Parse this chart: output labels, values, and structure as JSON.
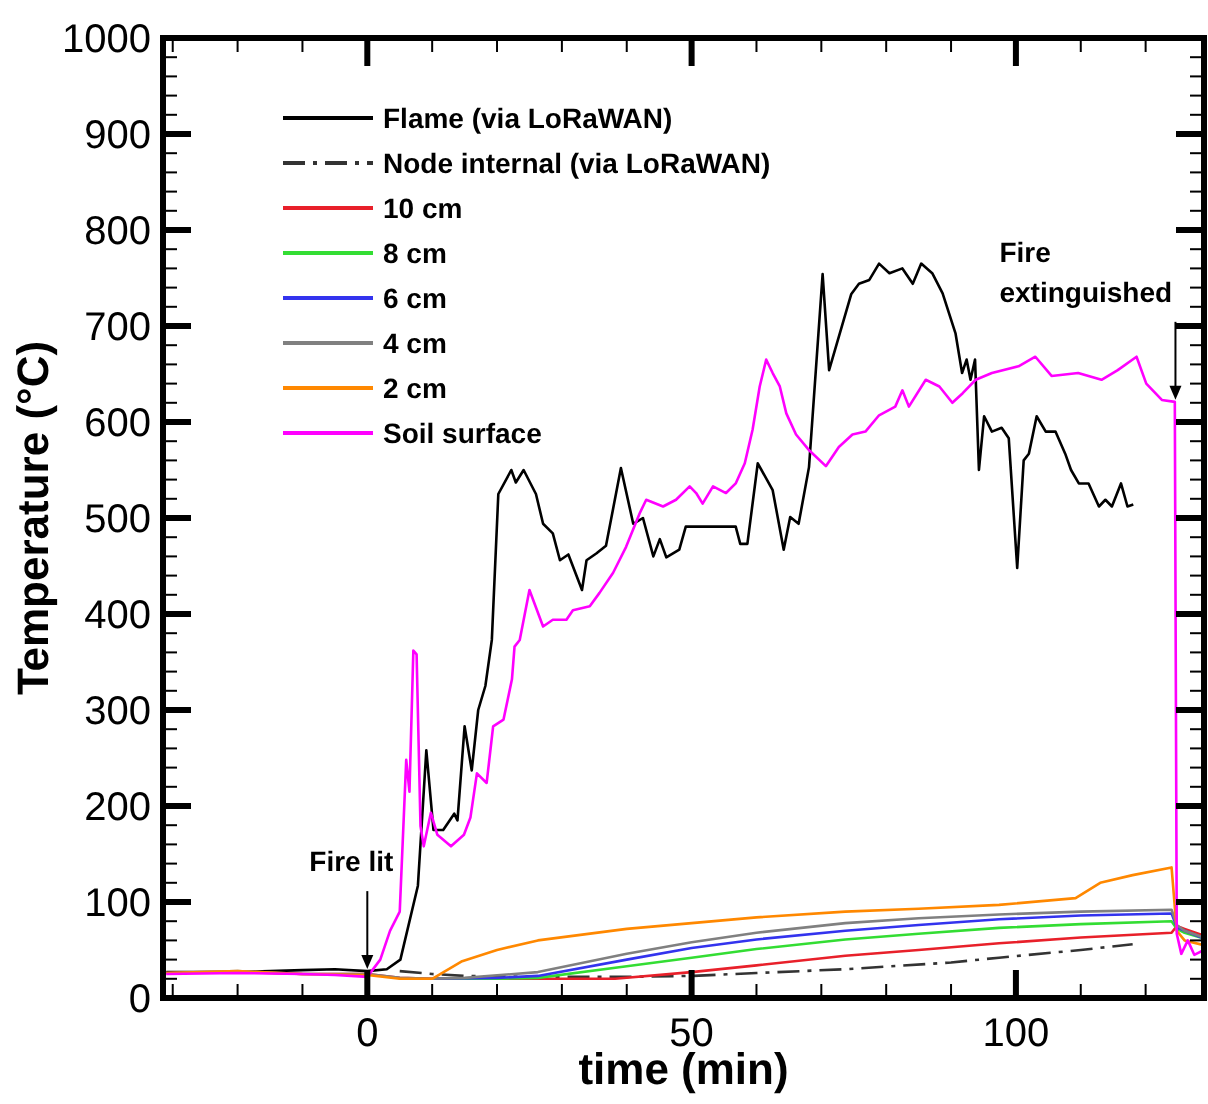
{
  "chart_data": {
    "type": "line",
    "xlabel": "time (min)",
    "ylabel": "Temperature (°C)",
    "xlim": [
      -31.5,
      129
    ],
    "ylim": [
      0,
      1000
    ],
    "xticks": [
      {
        "value": -30,
        "label": null
      },
      {
        "value": -20,
        "label": null
      },
      {
        "value": -10,
        "label": null
      },
      0,
      {
        "value": 10,
        "label": null
      },
      {
        "value": 20,
        "label": null
      },
      {
        "value": 30,
        "label": null
      },
      {
        "value": 40,
        "label": null
      },
      50,
      {
        "value": 60,
        "label": null
      },
      {
        "value": 70,
        "label": null
      },
      {
        "value": 80,
        "label": null
      },
      {
        "value": 90,
        "label": null
      },
      100,
      {
        "value": 110,
        "label": null
      },
      {
        "value": 120,
        "label": null
      }
    ],
    "yticks": [
      0,
      {
        "value": 20,
        "label": null
      },
      {
        "value": 40,
        "label": null
      },
      {
        "value": 60,
        "label": null
      },
      {
        "value": 80,
        "label": null
      },
      100,
      {
        "value": 120,
        "label": null
      },
      {
        "value": 140,
        "label": null
      },
      {
        "value": 160,
        "label": null
      },
      {
        "value": 180,
        "label": null
      },
      200,
      {
        "value": 220,
        "label": null
      },
      {
        "value": 240,
        "label": null
      },
      {
        "value": 260,
        "label": null
      },
      {
        "value": 280,
        "label": null
      },
      300,
      {
        "value": 320,
        "label": null
      },
      {
        "value": 340,
        "label": null
      },
      {
        "value": 360,
        "label": null
      },
      {
        "value": 380,
        "label": null
      },
      400,
      {
        "value": 420,
        "label": null
      },
      {
        "value": 440,
        "label": null
      },
      {
        "value": 460,
        "label": null
      },
      {
        "value": 480,
        "label": null
      },
      500,
      {
        "value": 520,
        "label": null
      },
      {
        "value": 540,
        "label": null
      },
      {
        "value": 560,
        "label": null
      },
      {
        "value": 580,
        "label": null
      },
      600,
      {
        "value": 620,
        "label": null
      },
      {
        "value": 640,
        "label": null
      },
      {
        "value": 660,
        "label": null
      },
      {
        "value": 680,
        "label": null
      },
      700,
      {
        "value": 720,
        "label": null
      },
      {
        "value": 740,
        "label": null
      },
      {
        "value": 760,
        "label": null
      },
      {
        "value": 780,
        "label": null
      },
      800,
      {
        "value": 820,
        "label": null
      },
      {
        "value": 840,
        "label": null
      },
      {
        "value": 860,
        "label": null
      },
      {
        "value": 880,
        "label": null
      },
      900,
      {
        "value": 920,
        "label": null
      },
      {
        "value": 940,
        "label": null
      },
      {
        "value": 960,
        "label": null
      },
      {
        "value": 980,
        "label": null
      },
      1000
    ],
    "grid": false,
    "legend": "top left",
    "annotations": [
      {
        "text": "Fire lit",
        "x": 0,
        "y": 28
      },
      {
        "text": "Fire\nextinguished",
        "x": 124.6,
        "y": 621
      }
    ],
    "series": [
      {
        "name": "Flame (via LoRaWAN)",
        "color": "#000000",
        "x": [
          -31,
          -20,
          -10,
          -5,
          0,
          3,
          5.1,
          7.8,
          9.1,
          10.2,
          11.7,
          13.4,
          13.9,
          15,
          16.1,
          17.1,
          18.2,
          19.2,
          20.2,
          22.2,
          22.9,
          24.1,
          26,
          27.1,
          28.6,
          29.7,
          31,
          33.1,
          33.8,
          35.3,
          36.8,
          39.1,
          41,
          42.5,
          44.1,
          45.1,
          46.1,
          48.1,
          49.1,
          56.8,
          57.5,
          58.6,
          60.2,
          62.5,
          64.2,
          65.2,
          66.5,
          68.1,
          70.2,
          71.2,
          74.6,
          75.8,
          77.4,
          78.9,
          80.5,
          82.5,
          84.1,
          85.4,
          87.1,
          88.7,
          90.7,
          91.7,
          92.4,
          93,
          93.7,
          94.3,
          95.1,
          96.3,
          97.8,
          98.9,
          100.2,
          101.2,
          102,
          103.2,
          104.6,
          106.1,
          107.6,
          108.5,
          109.7,
          111.2,
          112.8,
          113.8,
          114.8,
          116.2,
          117.2,
          118.1
        ],
        "values": [
          27,
          27,
          29,
          30,
          28,
          30,
          40,
          117,
          258,
          175,
          175,
          192,
          185,
          283,
          237,
          300,
          325,
          373,
          525,
          550,
          537,
          550,
          525,
          494,
          484,
          456,
          462,
          425,
          456,
          463,
          471,
          552,
          494,
          500,
          460,
          478,
          459,
          467,
          491,
          491,
          473,
          473,
          557,
          529,
          467,
          501,
          494,
          553,
          754,
          654,
          733,
          744,
          748,
          765,
          755,
          760,
          744,
          765,
          755,
          734,
          692,
          651,
          665,
          644,
          665,
          550,
          606,
          590,
          594,
          583,
          448,
          560,
          567,
          606,
          590,
          590,
          567,
          550,
          536,
          536,
          512,
          519,
          512,
          536,
          512,
          514
        ]
      },
      {
        "name": "Node internal (via LoRaWAN)",
        "color": "#333333",
        "line_style": "dashed",
        "x": [
          5,
          10,
          15,
          25,
          40,
          50,
          60,
          73.7,
          90,
          97.4,
          110,
          118
        ],
        "values": [
          28,
          25,
          23,
          22,
          22,
          23,
          26,
          30,
          37,
          42,
          50,
          56
        ]
      },
      {
        "name": "10 cm",
        "color": "#e8202a",
        "x": [
          -31,
          -20,
          -10,
          0,
          5,
          10,
          20,
          30,
          38.2,
          50,
          60,
          73.7,
          85,
          97.4,
          110,
          124,
          124.8,
          126,
          129
        ],
        "values": [
          26,
          27,
          25,
          25,
          21,
          20,
          20,
          20,
          20,
          27,
          34,
          44,
          50,
          57,
          63,
          68,
          75,
          72,
          65
        ]
      },
      {
        "name": "8 cm",
        "color": "#33dd33",
        "x": [
          10,
          20,
          26.3,
          40,
          50,
          60,
          73.7,
          85,
          97.4,
          110,
          124,
          124.8,
          126,
          129
        ],
        "values": [
          20,
          20,
          21,
          33,
          42,
          51,
          61,
          67,
          73,
          77,
          80,
          72,
          68,
          62
        ]
      },
      {
        "name": "6 cm",
        "color": "#3333ee",
        "x": [
          10,
          20,
          26.3,
          40,
          50,
          60,
          73.7,
          85,
          97.4,
          110,
          124,
          124.8,
          126,
          129
        ],
        "values": [
          20,
          21,
          23,
          40,
          52,
          61,
          70,
          76,
          82,
          86,
          88,
          74,
          70,
          62
        ]
      },
      {
        "name": "4 cm",
        "color": "#808080",
        "x": [
          -31,
          -20,
          -10,
          0,
          5,
          10,
          15,
          26.3,
          40,
          50,
          60,
          73.7,
          85,
          97.4,
          110,
          124,
          124.8,
          126,
          129
        ],
        "values": [
          26,
          28,
          25,
          25,
          21,
          20,
          21,
          27,
          46,
          58,
          68,
          78,
          83,
          87,
          90,
          92,
          76,
          70,
          63
        ]
      },
      {
        "name": "2 cm",
        "color": "#ff8800",
        "x": [
          -31,
          -20,
          -10,
          0,
          5,
          10,
          14.5,
          20,
          26.3,
          40,
          50,
          60,
          73.7,
          85,
          97.4,
          109.2,
          113,
          118,
          124,
          124.8,
          126,
          129
        ],
        "values": [
          26,
          28,
          25,
          24,
          20,
          20,
          38,
          50,
          60,
          72,
          78,
          84,
          90,
          93,
          97,
          104,
          120,
          128,
          136,
          70,
          60,
          55
        ]
      },
      {
        "name": "Soil surface",
        "color": "#ff00ff",
        "x": [
          -31,
          -20,
          -10,
          -5,
          0,
          2,
          3.5,
          5,
          6,
          6.5,
          7.1,
          7.6,
          8.2,
          8.7,
          9.8,
          10.8,
          12.9,
          14.9,
          15.9,
          16.9,
          18.4,
          19.4,
          21,
          22.3,
          22.7,
          23.5,
          25,
          27.1,
          28.6,
          30.7,
          31.7,
          34.3,
          35.8,
          37.9,
          39.9,
          42,
          43,
          45.6,
          47.6,
          49.7,
          50.7,
          51.7,
          53.3,
          55.3,
          56.8,
          58.2,
          59.4,
          60.5,
          61.5,
          62.5,
          63.6,
          64.6,
          66.1,
          68.2,
          70.7,
          72.7,
          74.8,
          76.8,
          78.9,
          81.4,
          82.5,
          83.5,
          86.1,
          88.2,
          90.2,
          91.8,
          93.8,
          96.3,
          100.4,
          103,
          105.5,
          109.6,
          113.2,
          115.7,
          118.6,
          120.1,
          122.5,
          124.5,
          124.8,
          125.5,
          126.5,
          127.5,
          129
        ],
        "values": [
          25,
          26,
          25,
          24,
          22,
          40,
          70,
          90,
          248,
          215,
          362,
          358,
          179,
          158,
          193,
          170,
          158,
          170,
          188,
          234,
          224,
          283,
          290,
          332,
          366,
          373,
          425,
          387,
          394,
          394,
          404,
          408,
          422,
          443,
          470,
          505,
          519,
          512,
          519,
          533,
          526,
          515,
          533,
          526,
          536,
          557,
          592,
          637,
          665,
          651,
          637,
          609,
          587,
          570,
          554,
          574,
          587,
          590,
          607,
          616,
          633,
          616,
          644,
          637,
          620,
          630,
          644,
          651,
          658,
          668,
          648,
          651,
          644,
          654,
          668,
          640,
          623,
          621,
          67,
          46,
          60,
          45,
          50
        ]
      }
    ]
  }
}
